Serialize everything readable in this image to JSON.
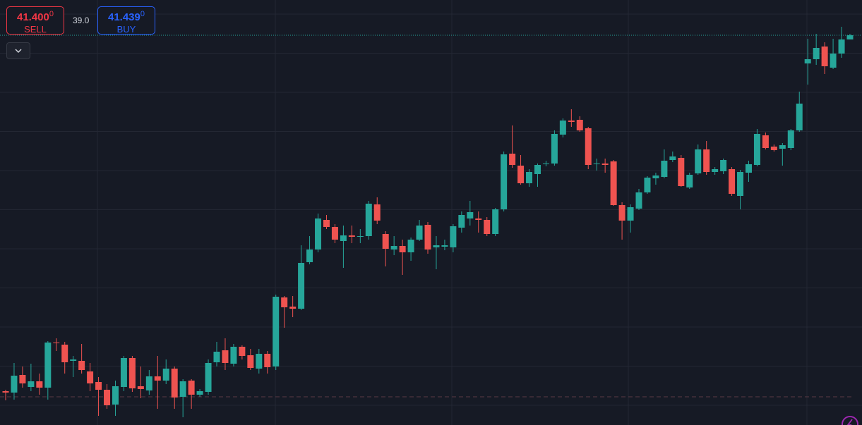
{
  "trade_panel": {
    "sell": {
      "price": "41.400",
      "price_sup": "0",
      "label": "SELL"
    },
    "spread": "39.0",
    "buy": {
      "price": "41.439",
      "price_sup": "0",
      "label": "BUY"
    }
  },
  "chart_data": {
    "type": "candlestick",
    "ylim": [
      35.87,
      41.9
    ],
    "up_color": "#26a69a",
    "down_color": "#ef5350",
    "open": [
      36.35,
      36.33,
      36.58,
      36.41,
      36.49,
      36.4,
      37.04,
      37.01,
      36.78,
      36.78,
      36.63,
      36.48,
      36.37,
      36.16,
      36.41,
      36.82,
      36.42,
      36.36,
      36.56,
      36.5,
      36.67,
      36.27,
      36.5,
      36.3,
      36.34,
      36.76,
      36.93,
      36.74,
      36.98,
      36.86,
      36.67,
      36.88,
      36.7,
      37.68,
      37.55,
      37.52,
      38.18,
      38.36,
      38.78,
      38.68,
      38.48,
      38.56,
      38.54,
      38.55,
      39.0,
      38.58,
      38.36,
      38.41,
      38.32,
      38.5,
      38.71,
      38.39,
      38.4,
      38.39,
      38.67,
      38.8,
      38.8,
      38.78,
      38.58,
      38.93,
      39.72,
      39.55,
      39.3,
      39.43,
      39.57,
      39.58,
      39.99,
      40.19,
      40.2,
      40.08,
      39.57,
      39.58,
      39.61,
      38.99,
      38.77,
      38.94,
      39.17,
      39.37,
      39.39,
      39.63,
      39.66,
      39.24,
      39.44,
      39.78,
      39.46,
      39.47,
      39.5,
      39.12,
      39.45,
      39.56,
      39.98,
      39.82,
      39.79,
      39.8,
      40.05,
      41.0,
      41.06,
      41.24,
      40.94,
      41.14,
      41.34
    ],
    "high": [
      36.37,
      36.75,
      36.7,
      36.74,
      36.6,
      37.06,
      37.1,
      37.05,
      36.85,
      37.02,
      36.75,
      36.55,
      36.45,
      36.5,
      36.85,
      36.85,
      36.7,
      36.65,
      36.85,
      36.8,
      36.7,
      36.52,
      36.52,
      36.38,
      36.8,
      37.05,
      37.1,
      37.02,
      37.0,
      36.95,
      36.95,
      36.92,
      37.72,
      37.7,
      37.7,
      38.42,
      38.55,
      38.87,
      38.85,
      38.72,
      38.7,
      38.7,
      38.65,
      39.05,
      39.1,
      38.62,
      38.55,
      38.5,
      38.53,
      38.78,
      38.75,
      38.55,
      38.5,
      38.72,
      38.9,
      39.05,
      38.9,
      38.82,
      38.95,
      39.75,
      40.12,
      39.7,
      39.5,
      39.58,
      39.62,
      40.05,
      40.22,
      40.35,
      40.25,
      40.1,
      39.65,
      39.65,
      39.63,
      39.03,
      39.0,
      39.22,
      39.4,
      39.45,
      39.78,
      39.75,
      39.7,
      39.45,
      39.85,
      39.9,
      39.53,
      39.65,
      39.53,
      39.49,
      39.62,
      40.07,
      40.02,
      39.85,
      39.87,
      40.07,
      40.6,
      41.35,
      41.42,
      41.3,
      41.35,
      41.52,
      41.42
    ],
    "low": [
      36.22,
      36.23,
      36.4,
      36.35,
      36.3,
      36.23,
      36.92,
      36.6,
      36.55,
      36.6,
      36.35,
      36.0,
      36.1,
      36.0,
      36.35,
      36.34,
      36.25,
      36.3,
      36.1,
      36.45,
      36.1,
      35.98,
      36.1,
      36.27,
      36.3,
      36.7,
      36.65,
      36.7,
      36.8,
      36.65,
      36.6,
      36.6,
      36.65,
      37.25,
      37.4,
      37.5,
      38.15,
      38.32,
      38.65,
      38.45,
      38.1,
      38.45,
      38.45,
      38.5,
      38.72,
      38.12,
      38.28,
      38.0,
      38.2,
      38.48,
      38.3,
      38.08,
      38.35,
      38.32,
      38.6,
      38.7,
      38.6,
      38.55,
      38.55,
      38.9,
      39.52,
      39.28,
      39.25,
      39.25,
      39.54,
      39.55,
      39.95,
      40.1,
      40.03,
      39.5,
      39.48,
      39.45,
      38.98,
      38.5,
      38.6,
      38.92,
      39.15,
      39.28,
      39.37,
      39.6,
      39.25,
      39.22,
      39.42,
      39.42,
      39.42,
      39.43,
      39.12,
      38.93,
      39.32,
      39.54,
      39.78,
      39.75,
      39.55,
      39.77,
      40.03,
      40.7,
      40.98,
      40.85,
      40.92,
      41.08,
      41.34
    ],
    "close": [
      36.33,
      36.57,
      36.46,
      36.49,
      36.4,
      37.04,
      37.03,
      36.76,
      36.8,
      36.65,
      36.46,
      36.37,
      36.15,
      36.42,
      36.82,
      36.39,
      36.38,
      36.56,
      36.5,
      36.67,
      36.26,
      36.49,
      36.3,
      36.35,
      36.75,
      36.91,
      36.75,
      36.98,
      36.85,
      36.68,
      36.88,
      36.69,
      37.69,
      37.54,
      37.52,
      38.17,
      38.36,
      38.8,
      38.68,
      38.5,
      38.56,
      38.54,
      38.55,
      39.01,
      38.77,
      38.37,
      38.41,
      38.32,
      38.5,
      38.7,
      38.36,
      38.42,
      38.42,
      38.69,
      38.85,
      38.89,
      38.78,
      38.58,
      38.93,
      39.71,
      39.56,
      39.3,
      39.46,
      39.56,
      39.58,
      40.0,
      40.19,
      40.17,
      40.05,
      39.56,
      39.58,
      39.56,
      38.99,
      38.77,
      38.96,
      39.17,
      39.38,
      39.41,
      39.62,
      39.68,
      39.26,
      39.42,
      39.78,
      39.46,
      39.5,
      39.63,
      39.15,
      39.46,
      39.57,
      40.0,
      39.8,
      39.77,
      39.84,
      40.05,
      40.43,
      41.06,
      41.22,
      40.96,
      41.14,
      41.34,
      41.4
    ]
  }
}
